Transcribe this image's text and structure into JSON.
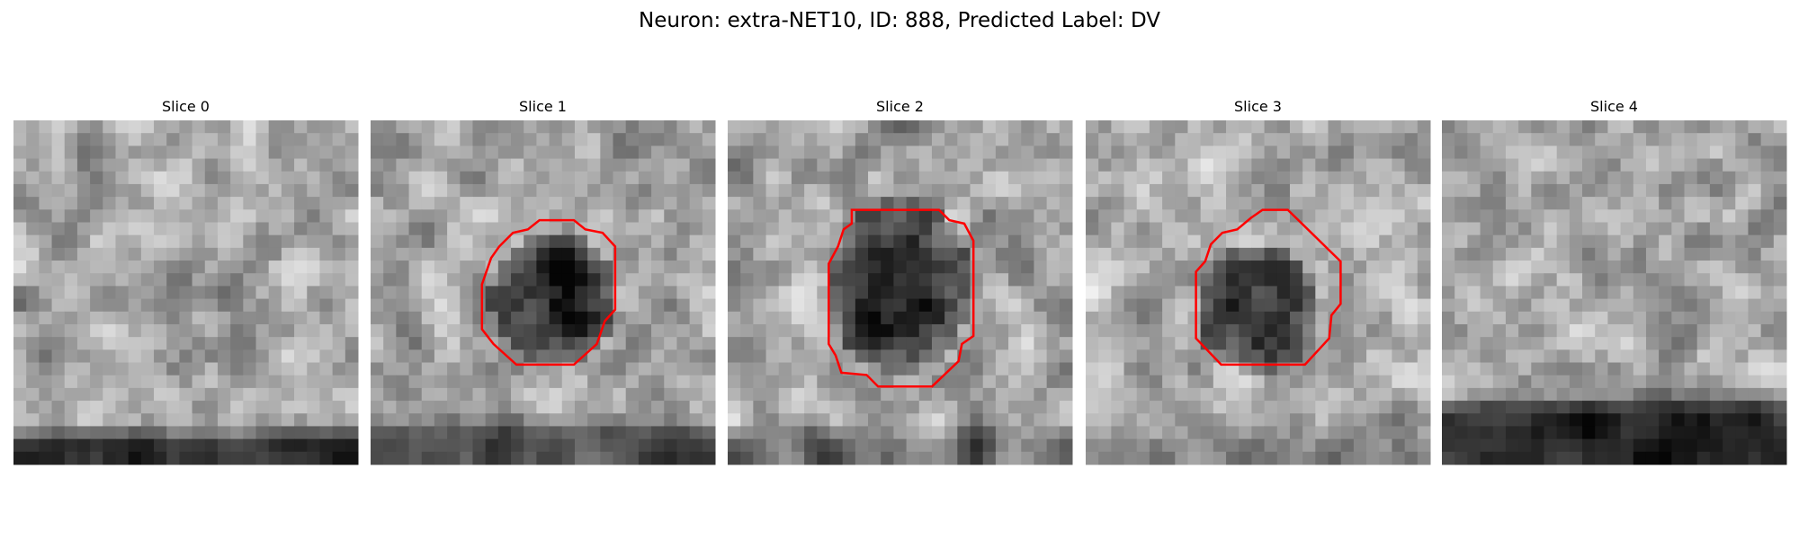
{
  "title": "Neuron: extra-NET10, ID: 888, Predicted Label: DV",
  "panels": [
    {
      "title": "Slice 0"
    },
    {
      "title": "Slice 1"
    },
    {
      "title": "Slice 2"
    },
    {
      "title": "Slice 3"
    },
    {
      "title": "Slice 4"
    }
  ]
}
